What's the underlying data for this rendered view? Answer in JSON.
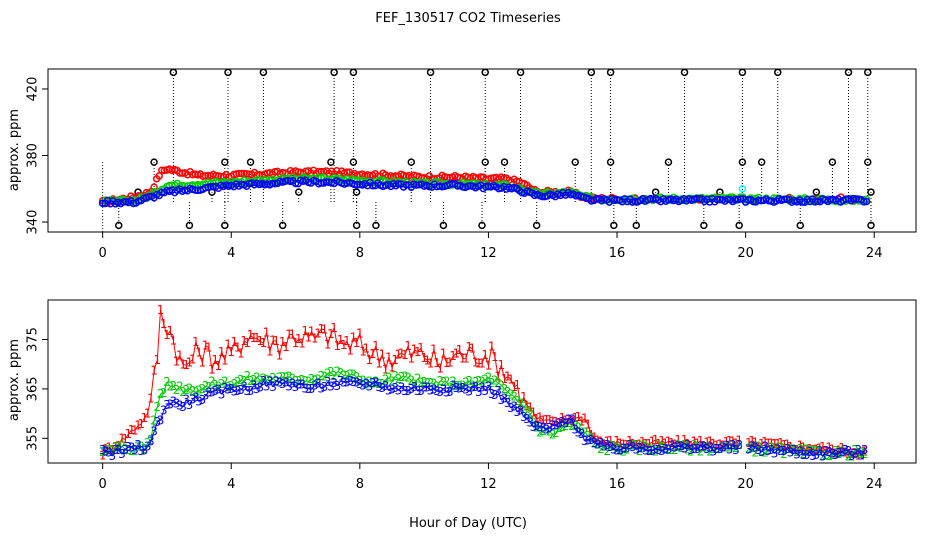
{
  "chart_data": {
    "type": "scatter",
    "title": "FEF_130517  CO2 Timeseries",
    "xlabel": "Hour of Day (UTC)",
    "colors": {
      "series1": "#ff0000",
      "series2": "#00cc00",
      "series3": "#0000ff",
      "series4": "#00ffff",
      "spikes": "#000000"
    },
    "panels": [
      {
        "id": "top",
        "ylabel": "approx. ppm",
        "xlim": [
          -1.7,
          25.3
        ],
        "ylim": [
          334,
          432
        ],
        "xticks": [
          0,
          4,
          8,
          12,
          16,
          20,
          24
        ],
        "yticks": [
          340,
          380,
          420
        ],
        "marker": "circle",
        "spike_base": 352,
        "spikes_high": [
          2.2,
          3.9,
          5.0,
          7.2,
          7.8,
          10.2,
          11.9,
          13.0,
          15.2,
          15.8,
          18.1,
          19.9,
          21.0,
          23.2,
          23.8
        ],
        "spikes_mid": [
          1.6,
          3.8,
          4.6,
          7.1,
          7.8,
          9.6,
          11.9,
          12.5,
          14.7,
          15.8,
          17.6,
          19.9,
          20.5,
          22.7,
          23.8
        ],
        "spikes_low": [
          0.5,
          2.7,
          3.8,
          5.6,
          7.9,
          8.5,
          10.6,
          11.8,
          13.5,
          15.9,
          16.6,
          18.7,
          19.8,
          21.7,
          23.9
        ],
        "spikes_small": [
          1.1,
          3.4,
          6.1,
          7.9,
          13.9,
          17.2,
          19.2,
          22.2,
          23.9
        ],
        "top_value": 430,
        "cyan_point": [
          19.9,
          360
        ],
        "series": [
          {
            "name": "1",
            "color": "#ff0000",
            "x": [
              0,
              1,
              1.5,
              1.8,
              2,
              2.5,
              3,
              4,
              5,
              6,
              7,
              8,
              9,
              10,
              11,
              12,
              12.5,
              13,
              13.5,
              14,
              14.5,
              15,
              15.3,
              16,
              20,
              23.8
            ],
            "y": [
              352,
              355,
              358,
              370,
              372,
              370,
              368,
              368,
              369,
              370,
              370,
              369,
              368,
              367,
              367,
              366,
              366,
              364,
              358,
              358,
              358,
              355,
              354,
              354,
              354,
              354
            ]
          },
          {
            "name": "2",
            "color": "#00cc00",
            "x": [
              0,
              1,
              1.5,
              2,
              3,
              4,
              5,
              6,
              7,
              8,
              9,
              10,
              11,
              12,
              12.5,
              13,
              13.5,
              14,
              14.5,
              15,
              15.3,
              16,
              20,
              23.8
            ],
            "y": [
              352,
              353,
              356,
              362,
              363,
              364,
              365,
              366,
              366,
              365,
              364,
              363,
              363,
              362,
              362,
              360,
              357,
              357,
              358,
              355,
              354,
              354,
              354,
              353
            ]
          },
          {
            "name": "3",
            "color": "#0000ff",
            "x": [
              0,
              1,
              1.5,
              2,
              3,
              4,
              5,
              6,
              7,
              8,
              9,
              10,
              11,
              12,
              12.5,
              13,
              13.5,
              14,
              14.5,
              15,
              15.3,
              16,
              20,
              23.8
            ],
            "y": [
              352,
              352,
              355,
              358,
              360,
              362,
              363,
              364,
              364,
              363,
              362,
              362,
              362,
              361,
              361,
              359,
              356,
              356,
              357,
              354,
              353,
              353,
              353,
              353
            ]
          }
        ]
      },
      {
        "id": "bottom",
        "ylabel": "approx. ppm",
        "xlim": [
          -1.7,
          25.3
        ],
        "ylim": [
          350,
          383
        ],
        "xticks": [
          0,
          4,
          8,
          12,
          16,
          20,
          24
        ],
        "yticks": [
          355,
          365,
          375
        ],
        "marker": "label",
        "gap": [
          19.85,
          20.1
        ],
        "series": [
          {
            "name": "1",
            "label": "1",
            "color": "#ff0000",
            "x": [
              0,
              0.5,
              1,
              1.3,
              1.5,
              1.7,
              1.8,
              2.0,
              2.2,
              2.5,
              3,
              3.5,
              4,
              4.5,
              5,
              5.5,
              6,
              6.5,
              7,
              7.5,
              8,
              8.5,
              9,
              9.5,
              10,
              10.5,
              11,
              11.5,
              12,
              12.3,
              12.6,
              13,
              13.3,
              13.5,
              14,
              14.5,
              15,
              15.3,
              15.6,
              16,
              18,
              20,
              22,
              23.8
            ],
            "y": [
              352,
              354,
              357,
              359,
              362,
              372,
              380,
              378,
              375,
              369,
              373,
              371,
              372,
              376,
              375,
              374,
              376,
              375,
              376,
              374,
              374,
              372,
              371,
              372,
              372,
              370,
              372,
              372,
              372,
              370,
              368,
              364,
              361,
              359,
              358,
              359,
              359,
              355,
              354,
              354,
              354,
              354,
              353,
              352
            ]
          },
          {
            "name": "2",
            "label": "2",
            "color": "#00cc00",
            "x": [
              0,
              0.5,
              1,
              1.3,
              1.5,
              1.7,
              2,
              2.5,
              3,
              3.5,
              4,
              4.5,
              5,
              5.5,
              6,
              6.5,
              7,
              7.5,
              8,
              8.5,
              9,
              9.5,
              10,
              10.5,
              11,
              11.5,
              12,
              12.3,
              12.6,
              13,
              13.3,
              13.5,
              14,
              14.5,
              15,
              15.3,
              15.6,
              16,
              18,
              20,
              22,
              23.8
            ],
            "y": [
              352,
              353,
              353,
              353,
              355,
              362,
              366,
              365,
              365,
              366,
              366,
              367,
              367,
              367,
              367,
              367,
              368,
              368,
              367,
              366,
              367,
              367,
              366,
              366,
              366,
              366,
              367,
              366,
              364,
              362,
              360,
              357,
              356,
              358,
              356,
              354,
              353,
              353,
              353,
              353,
              352,
              352
            ]
          },
          {
            "name": "3",
            "label": "3",
            "color": "#0000ff",
            "x": [
              0,
              0.5,
              1,
              1.3,
              1.5,
              1.7,
              2,
              2.5,
              3,
              3.5,
              4,
              4.5,
              5,
              5.5,
              6,
              6.5,
              7,
              7.5,
              8,
              8.5,
              9,
              9.5,
              10,
              10.5,
              11,
              11.5,
              12,
              12.3,
              12.6,
              13,
              13.3,
              13.5,
              14,
              14.5,
              15,
              15.3,
              15.6,
              16,
              18,
              20,
              22,
              23.8
            ],
            "y": [
              352,
              352,
              353,
              353,
              354,
              358,
              362,
              362,
              363,
              364,
              365,
              365,
              366,
              366,
              366,
              365,
              366,
              366,
              366,
              366,
              365,
              365,
              365,
              365,
              365,
              365,
              365,
              364,
              362,
              360,
              358,
              357,
              357,
              359,
              355,
              354,
              353,
              353,
              353,
              353,
              352,
              352
            ]
          }
        ]
      }
    ]
  }
}
